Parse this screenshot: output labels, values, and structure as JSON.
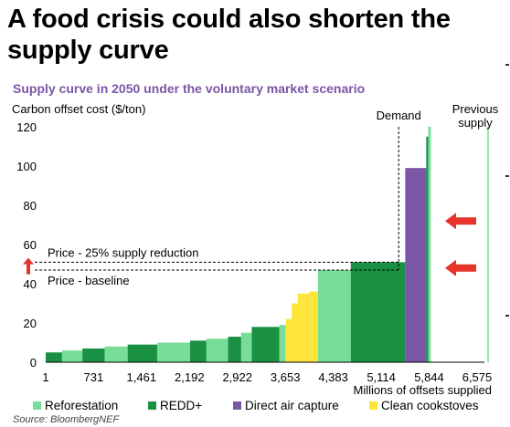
{
  "title": "A food crisis could also shorten the supply curve",
  "subtitle": "Supply curve in 2050 under the voluntary market scenario",
  "source": "Source: BloombergNEF",
  "chart_data": {
    "type": "bar",
    "ylabel": "Carbon offset cost ($/ton)",
    "xlabel": "Millions of offsets supplied",
    "ylim": [
      0,
      120
    ],
    "xlim": [
      1,
      6575
    ],
    "y_ticks": [
      "0",
      "20",
      "40",
      "60",
      "80",
      "100",
      "120"
    ],
    "x_ticks": [
      "1",
      "731",
      "1,461",
      "2,192",
      "2,922",
      "3,653",
      "4,383",
      "5,114",
      "5,844",
      "6,575"
    ],
    "colors": {
      "Reforestation": "#77dd99",
      "REDD+": "#1a9142",
      "Direct air capture": "#7b55a6",
      "Clean cookstoves": "#ffe43a",
      "arrow": "#e8332a"
    },
    "legend": [
      {
        "name": "Reforestation",
        "color": "#77dd99"
      },
      {
        "name": "REDD+",
        "color": "#1a9142"
      },
      {
        "name": "Direct air capture",
        "color": "#7b55a6"
      },
      {
        "name": "Clean cookstoves",
        "color": "#ffe43a"
      }
    ],
    "segments": [
      {
        "x0": 1,
        "x1": 250,
        "y": 5,
        "type": "REDD+"
      },
      {
        "x0": 250,
        "x1": 560,
        "y": 6,
        "type": "Reforestation"
      },
      {
        "x0": 560,
        "x1": 900,
        "y": 7,
        "type": "REDD+"
      },
      {
        "x0": 900,
        "x1": 1250,
        "y": 8,
        "type": "Reforestation"
      },
      {
        "x0": 1250,
        "x1": 1700,
        "y": 9,
        "type": "REDD+"
      },
      {
        "x0": 1700,
        "x1": 2200,
        "y": 10,
        "type": "Reforestation"
      },
      {
        "x0": 2200,
        "x1": 2450,
        "y": 11,
        "type": "REDD+"
      },
      {
        "x0": 2450,
        "x1": 2780,
        "y": 12,
        "type": "Reforestation"
      },
      {
        "x0": 2780,
        "x1": 2980,
        "y": 13,
        "type": "REDD+"
      },
      {
        "x0": 2980,
        "x1": 3140,
        "y": 15,
        "type": "Reforestation"
      },
      {
        "x0": 3140,
        "x1": 3560,
        "y": 18,
        "type": "REDD+"
      },
      {
        "x0": 3560,
        "x1": 3660,
        "y": 19,
        "type": "Reforestation"
      },
      {
        "x0": 3660,
        "x1": 3750,
        "y": 22,
        "type": "Clean cookstoves"
      },
      {
        "x0": 3750,
        "x1": 3840,
        "y": 30,
        "type": "Clean cookstoves"
      },
      {
        "x0": 3840,
        "x1": 4010,
        "y": 35,
        "type": "Clean cookstoves"
      },
      {
        "x0": 4010,
        "x1": 4150,
        "y": 36,
        "type": "Clean cookstoves"
      },
      {
        "x0": 4150,
        "x1": 4650,
        "y": 47,
        "type": "Reforestation"
      },
      {
        "x0": 4650,
        "x1": 5480,
        "y": 51,
        "type": "REDD+"
      },
      {
        "x0": 5480,
        "x1": 5800,
        "y": 99,
        "type": "Direct air capture"
      },
      {
        "x0": 5800,
        "x1": 5830,
        "y": 115,
        "type": "REDD+"
      },
      {
        "x0": 5830,
        "x1": 5870,
        "y": 120,
        "type": "Reforestation"
      }
    ],
    "previous_supply": {
      "x": 6970,
      "y": 120,
      "label": "Previous supply"
    },
    "demand": {
      "x": 5380,
      "label": "Demand"
    },
    "price_lines": [
      {
        "label": "Price - 25% supply reduction",
        "y": 51
      },
      {
        "label": "Price - baseline",
        "y": 47
      }
    ],
    "arrows": [
      {
        "direction": "left",
        "y": 72
      },
      {
        "direction": "left",
        "y": 48
      },
      {
        "direction": "up",
        "y": 49
      }
    ]
  }
}
